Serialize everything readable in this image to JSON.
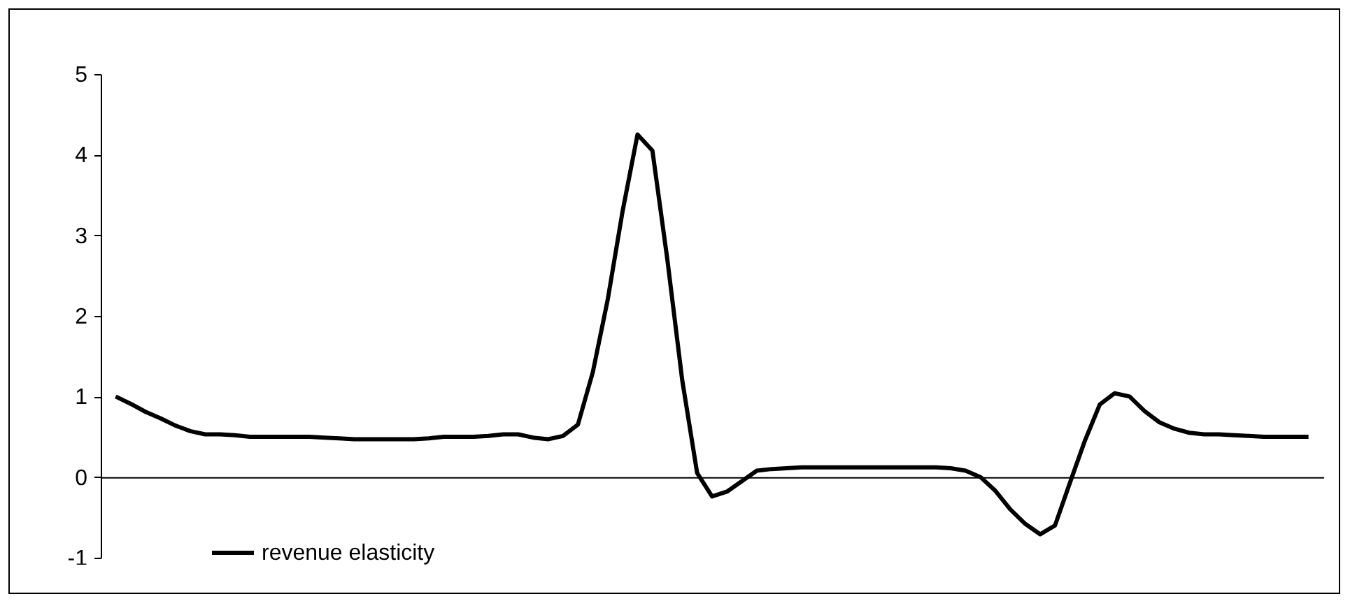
{
  "chart_data": {
    "type": "line",
    "categories": [
      null,
      null,
      null,
      null,
      null,
      null,
      null,
      null,
      null,
      null,
      null,
      null,
      null,
      null,
      null,
      null,
      null,
      null,
      null,
      null,
      null,
      null,
      null,
      null,
      null,
      null,
      null,
      null,
      null,
      null,
      null,
      null,
      null,
      null,
      null,
      null,
      null,
      null,
      null,
      null,
      null,
      null,
      null,
      null,
      null,
      null,
      null,
      null,
      null,
      null,
      null,
      null,
      null,
      null,
      null,
      null,
      null,
      null,
      null,
      null,
      null,
      null,
      null,
      null,
      null,
      null,
      null,
      null,
      null,
      null,
      null,
      null,
      null,
      null,
      null,
      null,
      null,
      null,
      null,
      null,
      null
    ],
    "series": [
      {
        "name": "revenue elasticity",
        "color": "#000000",
        "values": [
          1.0,
          0.91,
          0.81,
          0.73,
          0.64,
          0.57,
          0.53,
          0.53,
          0.52,
          0.5,
          0.5,
          0.5,
          0.5,
          0.5,
          0.49,
          0.48,
          0.47,
          0.47,
          0.47,
          0.47,
          0.47,
          0.48,
          0.5,
          0.5,
          0.5,
          0.51,
          0.53,
          0.53,
          0.49,
          0.47,
          0.51,
          0.65,
          1.3,
          2.2,
          3.3,
          4.25,
          4.05,
          2.7,
          1.2,
          0.05,
          -0.24,
          -0.18,
          -0.05,
          0.08,
          0.1,
          0.11,
          0.12,
          0.12,
          0.12,
          0.12,
          0.12,
          0.12,
          0.12,
          0.12,
          0.12,
          0.12,
          0.11,
          0.08,
          0.0,
          -0.17,
          -0.4,
          -0.58,
          -0.71,
          -0.6,
          -0.07,
          0.45,
          0.9,
          1.04,
          1.0,
          0.82,
          0.68,
          0.6,
          0.55,
          0.53,
          0.53,
          0.52,
          0.51,
          0.5,
          0.5,
          0.5,
          0.5
        ]
      }
    ],
    "ylim": [
      -1,
      5
    ],
    "yticks": [
      -1,
      0,
      1,
      2,
      3,
      4,
      5
    ],
    "tick_labels": "y",
    "legend": "bottom left",
    "marker": "none",
    "line_style": "solid"
  }
}
